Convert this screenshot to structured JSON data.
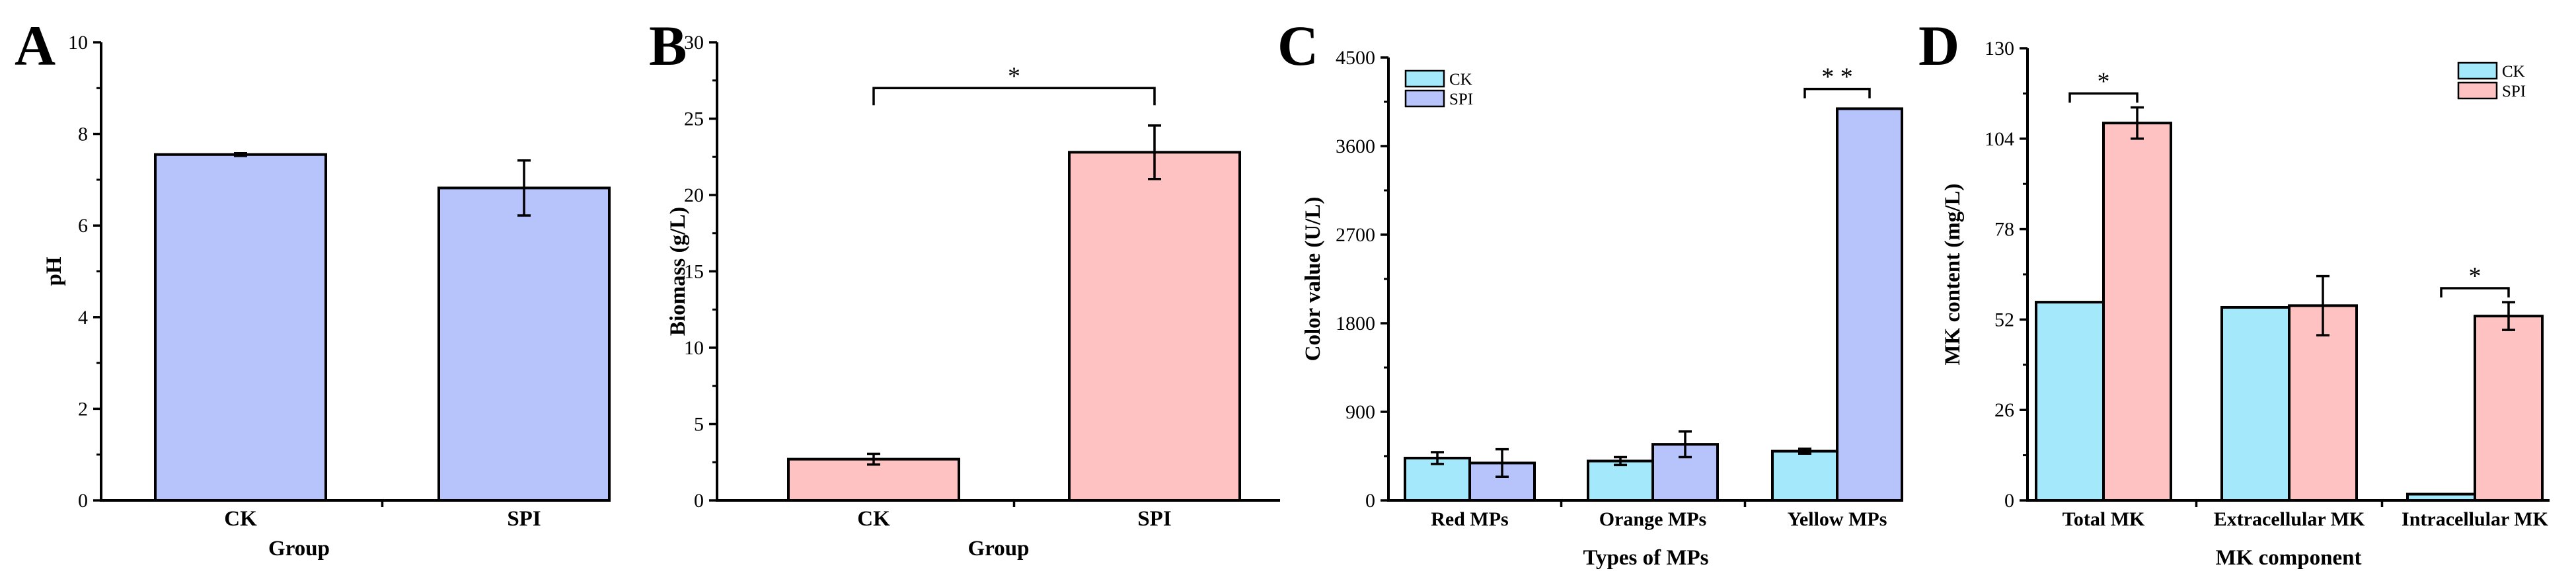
{
  "colors": {
    "blue": "#B7C3FB",
    "pink": "#FEC2C2",
    "cyan": "#A3E8FB",
    "axis": "#000000"
  },
  "chart_data": [
    {
      "panel": "A",
      "type": "bar",
      "xlabel": "Group",
      "ylabel": "pH",
      "ylim": [
        0,
        10
      ],
      "yticks": [
        "0",
        "2",
        "4",
        "6",
        "8",
        "10"
      ],
      "categories": [
        "CK",
        "SPI"
      ],
      "series": [
        {
          "name": "pH",
          "values": [
            7.55,
            6.82
          ],
          "errors": [
            0.03,
            0.6
          ],
          "colors": [
            "#B7C3FB",
            "#B7C3FB"
          ]
        }
      ],
      "significance": []
    },
    {
      "panel": "B",
      "type": "bar",
      "xlabel": "Group",
      "ylabel": "Biomass (g/L)",
      "ylim": [
        0,
        30
      ],
      "yticks": [
        "0",
        "5",
        "10",
        "15",
        "20",
        "25",
        "30"
      ],
      "categories": [
        "CK",
        "SPI"
      ],
      "series": [
        {
          "name": "Biomass",
          "values": [
            2.7,
            22.8
          ],
          "errors": [
            0.35,
            1.75
          ],
          "colors": [
            "#FEC2C2",
            "#FEC2C2"
          ]
        }
      ],
      "significance": [
        {
          "label": "*",
          "from": 0,
          "to": 1,
          "y": 27
        }
      ]
    },
    {
      "panel": "C",
      "type": "bar",
      "xlabel": "Types of MPs",
      "ylabel": "Color value (U/L)",
      "ylim": [
        0,
        4500
      ],
      "yticks": [
        "0",
        "900",
        "1800",
        "2700",
        "3600",
        "4500"
      ],
      "categories": [
        "Red MPs",
        "Orange MPs",
        "Yellow MPs"
      ],
      "legend": {
        "position": "top-left",
        "entries": [
          "CK",
          "SPI"
        ]
      },
      "series": [
        {
          "name": "CK",
          "values": [
            430,
            400,
            500
          ],
          "errors": [
            60,
            40,
            25
          ],
          "colors": [
            "#A3E8FB",
            "#A3E8FB",
            "#A3E8FB"
          ]
        },
        {
          "name": "SPI",
          "values": [
            380,
            570,
            3980
          ],
          "errors": [
            140,
            130,
            0
          ],
          "colors": [
            "#B7C3FB",
            "#B7C3FB",
            "#B7C3FB"
          ]
        }
      ],
      "significance": [
        {
          "label": "* *",
          "category": 2,
          "y": 4180
        }
      ]
    },
    {
      "panel": "D",
      "type": "bar",
      "xlabel": "MK component",
      "ylabel": "MK content (mg/L)",
      "ylim": [
        0,
        130
      ],
      "yticks": [
        "0",
        "26",
        "52",
        "78",
        "104",
        "130"
      ],
      "categories": [
        "Total MK",
        "Extracellular MK",
        "Intracellular MK"
      ],
      "legend": {
        "position": "top-right",
        "entries": [
          "CK",
          "SPI"
        ]
      },
      "series": [
        {
          "name": "CK",
          "values": [
            57,
            55.5,
            1.8
          ],
          "errors": [
            0,
            0,
            0
          ],
          "colors": [
            "#A3E8FB",
            "#A3E8FB",
            "#A3E8FB"
          ]
        },
        {
          "name": "SPI",
          "values": [
            108.5,
            56,
            53
          ],
          "errors": [
            4.5,
            8.5,
            4
          ],
          "colors": [
            "#FEC2C2",
            "#FEC2C2",
            "#FEC2C2"
          ]
        }
      ],
      "significance": [
        {
          "label": "*",
          "category": 0,
          "y": 117
        },
        {
          "label": "*",
          "category": 2,
          "y": 61
        }
      ]
    }
  ]
}
